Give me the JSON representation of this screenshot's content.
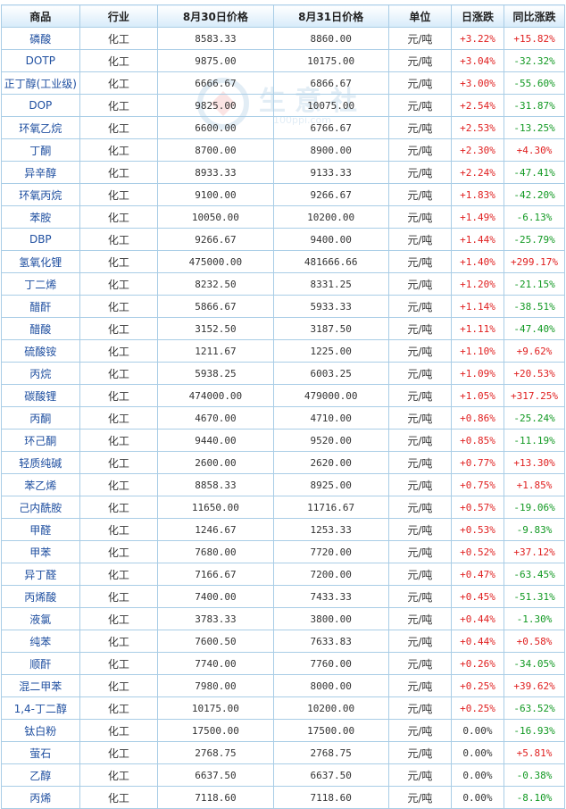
{
  "watermark": {
    "text": "生意社",
    "url": "100ppi.com"
  },
  "headers": {
    "name": "商品",
    "industry": "行业",
    "price_aug30": "8月30日价格",
    "price_aug31": "8月31日价格",
    "unit": "单位",
    "daily_change": "日涨跌",
    "yoy_change": "同比涨跌"
  },
  "rows": [
    {
      "name": "磷酸",
      "industry": "化工",
      "p30": "8583.33",
      "p31": "8860.00",
      "unit": "元/吨",
      "daily": "+3.22%",
      "yoy": "+15.82%"
    },
    {
      "name": "DOTP",
      "industry": "化工",
      "p30": "9875.00",
      "p31": "10175.00",
      "unit": "元/吨",
      "daily": "+3.04%",
      "yoy": "-32.32%"
    },
    {
      "name": "正丁醇(工业级)",
      "industry": "化工",
      "p30": "6666.67",
      "p31": "6866.67",
      "unit": "元/吨",
      "daily": "+3.00%",
      "yoy": "-55.60%"
    },
    {
      "name": "DOP",
      "industry": "化工",
      "p30": "9825.00",
      "p31": "10075.00",
      "unit": "元/吨",
      "daily": "+2.54%",
      "yoy": "-31.87%"
    },
    {
      "name": "环氧乙烷",
      "industry": "化工",
      "p30": "6600.00",
      "p31": "6766.67",
      "unit": "元/吨",
      "daily": "+2.53%",
      "yoy": "-13.25%"
    },
    {
      "name": "丁酮",
      "industry": "化工",
      "p30": "8700.00",
      "p31": "8900.00",
      "unit": "元/吨",
      "daily": "+2.30%",
      "yoy": "+4.30%"
    },
    {
      "name": "异辛醇",
      "industry": "化工",
      "p30": "8933.33",
      "p31": "9133.33",
      "unit": "元/吨",
      "daily": "+2.24%",
      "yoy": "-47.41%"
    },
    {
      "name": "环氧丙烷",
      "industry": "化工",
      "p30": "9100.00",
      "p31": "9266.67",
      "unit": "元/吨",
      "daily": "+1.83%",
      "yoy": "-42.20%"
    },
    {
      "name": "苯胺",
      "industry": "化工",
      "p30": "10050.00",
      "p31": "10200.00",
      "unit": "元/吨",
      "daily": "+1.49%",
      "yoy": "-6.13%"
    },
    {
      "name": "DBP",
      "industry": "化工",
      "p30": "9266.67",
      "p31": "9400.00",
      "unit": "元/吨",
      "daily": "+1.44%",
      "yoy": "-25.79%"
    },
    {
      "name": "氢氧化锂",
      "industry": "化工",
      "p30": "475000.00",
      "p31": "481666.66",
      "unit": "元/吨",
      "daily": "+1.40%",
      "yoy": "+299.17%"
    },
    {
      "name": "丁二烯",
      "industry": "化工",
      "p30": "8232.50",
      "p31": "8331.25",
      "unit": "元/吨",
      "daily": "+1.20%",
      "yoy": "-21.15%"
    },
    {
      "name": "醋酐",
      "industry": "化工",
      "p30": "5866.67",
      "p31": "5933.33",
      "unit": "元/吨",
      "daily": "+1.14%",
      "yoy": "-38.51%"
    },
    {
      "name": "醋酸",
      "industry": "化工",
      "p30": "3152.50",
      "p31": "3187.50",
      "unit": "元/吨",
      "daily": "+1.11%",
      "yoy": "-47.40%"
    },
    {
      "name": "硫酸铵",
      "industry": "化工",
      "p30": "1211.67",
      "p31": "1225.00",
      "unit": "元/吨",
      "daily": "+1.10%",
      "yoy": "+9.62%"
    },
    {
      "name": "丙烷",
      "industry": "化工",
      "p30": "5938.25",
      "p31": "6003.25",
      "unit": "元/吨",
      "daily": "+1.09%",
      "yoy": "+20.53%"
    },
    {
      "name": "碳酸锂",
      "industry": "化工",
      "p30": "474000.00",
      "p31": "479000.00",
      "unit": "元/吨",
      "daily": "+1.05%",
      "yoy": "+317.25%"
    },
    {
      "name": "丙酮",
      "industry": "化工",
      "p30": "4670.00",
      "p31": "4710.00",
      "unit": "元/吨",
      "daily": "+0.86%",
      "yoy": "-25.24%"
    },
    {
      "name": "环己酮",
      "industry": "化工",
      "p30": "9440.00",
      "p31": "9520.00",
      "unit": "元/吨",
      "daily": "+0.85%",
      "yoy": "-11.19%"
    },
    {
      "name": "轻质纯碱",
      "industry": "化工",
      "p30": "2600.00",
      "p31": "2620.00",
      "unit": "元/吨",
      "daily": "+0.77%",
      "yoy": "+13.30%"
    },
    {
      "name": "苯乙烯",
      "industry": "化工",
      "p30": "8858.33",
      "p31": "8925.00",
      "unit": "元/吨",
      "daily": "+0.75%",
      "yoy": "+1.85%"
    },
    {
      "name": "己内酰胺",
      "industry": "化工",
      "p30": "11650.00",
      "p31": "11716.67",
      "unit": "元/吨",
      "daily": "+0.57%",
      "yoy": "-19.06%"
    },
    {
      "name": "甲醛",
      "industry": "化工",
      "p30": "1246.67",
      "p31": "1253.33",
      "unit": "元/吨",
      "daily": "+0.53%",
      "yoy": "-9.83%"
    },
    {
      "name": "甲苯",
      "industry": "化工",
      "p30": "7680.00",
      "p31": "7720.00",
      "unit": "元/吨",
      "daily": "+0.52%",
      "yoy": "+37.12%"
    },
    {
      "name": "异丁醛",
      "industry": "化工",
      "p30": "7166.67",
      "p31": "7200.00",
      "unit": "元/吨",
      "daily": "+0.47%",
      "yoy": "-63.45%"
    },
    {
      "name": "丙烯酸",
      "industry": "化工",
      "p30": "7400.00",
      "p31": "7433.33",
      "unit": "元/吨",
      "daily": "+0.45%",
      "yoy": "-51.31%"
    },
    {
      "name": "液氯",
      "industry": "化工",
      "p30": "3783.33",
      "p31": "3800.00",
      "unit": "元/吨",
      "daily": "+0.44%",
      "yoy": "-1.30%"
    },
    {
      "name": "纯苯",
      "industry": "化工",
      "p30": "7600.50",
      "p31": "7633.83",
      "unit": "元/吨",
      "daily": "+0.44%",
      "yoy": "+0.58%"
    },
    {
      "name": "顺酐",
      "industry": "化工",
      "p30": "7740.00",
      "p31": "7760.00",
      "unit": "元/吨",
      "daily": "+0.26%",
      "yoy": "-34.05%"
    },
    {
      "name": "混二甲苯",
      "industry": "化工",
      "p30": "7980.00",
      "p31": "8000.00",
      "unit": "元/吨",
      "daily": "+0.25%",
      "yoy": "+39.62%"
    },
    {
      "name": "1,4-丁二醇",
      "industry": "化工",
      "p30": "10175.00",
      "p31": "10200.00",
      "unit": "元/吨",
      "daily": "+0.25%",
      "yoy": "-63.52%"
    },
    {
      "name": "钛白粉",
      "industry": "化工",
      "p30": "17500.00",
      "p31": "17500.00",
      "unit": "元/吨",
      "daily": "0.00%",
      "yoy": "-16.93%"
    },
    {
      "name": "萤石",
      "industry": "化工",
      "p30": "2768.75",
      "p31": "2768.75",
      "unit": "元/吨",
      "daily": "0.00%",
      "yoy": "+5.81%"
    },
    {
      "name": "乙醇",
      "industry": "化工",
      "p30": "6637.50",
      "p31": "6637.50",
      "unit": "元/吨",
      "daily": "0.00%",
      "yoy": "-0.38%"
    },
    {
      "name": "丙烯",
      "industry": "化工",
      "p30": "7118.60",
      "p31": "7118.60",
      "unit": "元/吨",
      "daily": "0.00%",
      "yoy": "-8.10%"
    }
  ],
  "colors": {
    "up": "#e02020",
    "down": "#119922",
    "link": "#1f4fa0",
    "border": "#a9cde6"
  }
}
